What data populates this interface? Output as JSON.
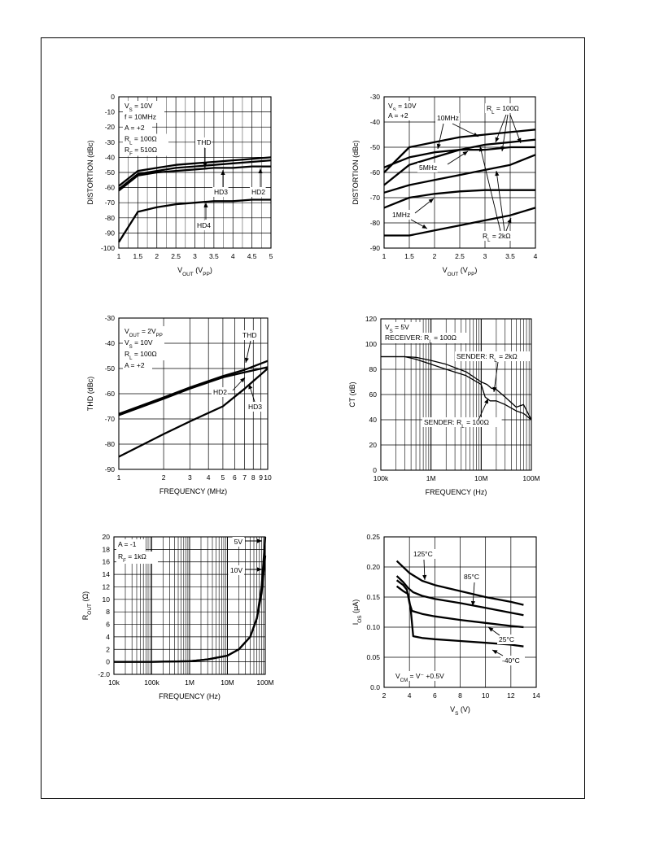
{
  "page": {
    "frame_color": "#000000"
  },
  "chart_data": [
    {
      "id": "distortion-vs-vout-10mhz",
      "type": "line",
      "xlabel": "V_OUT (V_PP)",
      "ylabel": "DISTORTION (dBc)",
      "xlim": [
        1,
        5
      ],
      "ylim": [
        -100,
        0
      ],
      "x_ticks": [
        1,
        1.5,
        2,
        2.5,
        3,
        3.5,
        4,
        4.5,
        5
      ],
      "x_tick_labels": [
        "1",
        "1.5",
        "2",
        "2.5",
        "3",
        "3.5",
        "4",
        "4.5",
        "5"
      ],
      "y_ticks": [
        0,
        -10,
        -20,
        -30,
        -40,
        -50,
        -60,
        -70,
        -80,
        -90,
        -100
      ],
      "y_tick_labels": [
        "0",
        "-10",
        "-20",
        "-30",
        "-40",
        "-50",
        "-60",
        "-70",
        "-80",
        "-90",
        "-100"
      ],
      "grid": true,
      "conditions": [
        "V_S = 10V",
        "f = 10MHz",
        "A = +2",
        "R_L = 100Ω",
        "R_F = 510Ω"
      ],
      "series": [
        {
          "name": "THD",
          "x": [
            1,
            1.5,
            2,
            2.5,
            3,
            3.5,
            4,
            4.5,
            5
          ],
          "y": [
            -59,
            -49,
            -47,
            -45,
            -44,
            -43,
            -42,
            -41,
            -40
          ]
        },
        {
          "name": "HD3",
          "x": [
            1,
            1.5,
            2,
            2.5,
            3,
            3.5,
            4,
            4.5,
            5
          ],
          "y": [
            -61,
            -51,
            -49,
            -47,
            -46,
            -45,
            -44,
            -43,
            -42
          ]
        },
        {
          "name": "HD2",
          "x": [
            1,
            1.5,
            2,
            2.5,
            3,
            3.5,
            4,
            4.5,
            5
          ],
          "y": [
            -62,
            -52,
            -50,
            -49,
            -48,
            -47,
            -47,
            -46,
            -46
          ]
        },
        {
          "name": "HD4",
          "x": [
            1,
            1.5,
            2,
            2.5,
            3,
            3.5,
            4,
            4.5,
            5
          ],
          "y": [
            -96,
            -76,
            -73,
            -71,
            -70,
            -69,
            -69,
            -68,
            -68
          ]
        }
      ],
      "annotations": [
        "THD",
        "HD3",
        "HD2",
        "HD4"
      ]
    },
    {
      "id": "distortion-vs-vout-load",
      "type": "line",
      "xlabel": "V_OUT (V_PP)",
      "ylabel": "DISTORTION (dBc)",
      "xlim": [
        1,
        4
      ],
      "ylim": [
        -90,
        -30
      ],
      "x_ticks": [
        1,
        1.5,
        2,
        2.5,
        3,
        3.5,
        4
      ],
      "x_tick_labels": [
        "1",
        "1.5",
        "2",
        "2.5",
        "3",
        "3.5",
        "4"
      ],
      "y_ticks": [
        -30,
        -40,
        -50,
        -60,
        -70,
        -80,
        -90
      ],
      "y_tick_labels": [
        "-30",
        "-40",
        "-50",
        "-60",
        "-70",
        "-80",
        "-90"
      ],
      "grid": true,
      "conditions": [
        "V_S = 10V",
        "A = +2"
      ],
      "series": [
        {
          "x": [
            1,
            1.5,
            2,
            2.5,
            3,
            3.5,
            4
          ],
          "y": [
            -60,
            -50,
            -48,
            -46,
            -45,
            -44,
            -43
          ]
        },
        {
          "x": [
            1,
            1.5,
            2,
            2.5,
            3,
            3.5,
            4
          ],
          "y": [
            -58,
            -54,
            -52,
            -51,
            -51,
            -50,
            -50
          ]
        },
        {
          "x": [
            1,
            1.5,
            2,
            2.5,
            3,
            3.5,
            4
          ],
          "y": [
            -65,
            -57,
            -54,
            -51,
            -49,
            -48,
            -47
          ]
        },
        {
          "x": [
            1,
            1.5,
            2,
            2.5,
            3,
            3.5,
            4
          ],
          "y": [
            -68,
            -65,
            -63,
            -61,
            -59,
            -57,
            -53
          ]
        },
        {
          "x": [
            1,
            1.5,
            2,
            2.5,
            3,
            3.5,
            4
          ],
          "y": [
            -74,
            -70,
            -68.5,
            -67.5,
            -67,
            -67,
            -67
          ]
        },
        {
          "x": [
            1,
            1.5,
            2,
            2.5,
            3,
            3.5,
            4
          ],
          "y": [
            -85,
            -85,
            -83,
            -81,
            -79,
            -77,
            -74
          ]
        }
      ],
      "annotations": [
        "10MHz",
        "5MHz",
        "1MHz",
        "R_L = 100Ω",
        "R_L = 2kΩ"
      ]
    },
    {
      "id": "thd-vs-frequency",
      "type": "line",
      "xscale": "log",
      "xlabel": "FREQUENCY (MHz)",
      "ylabel": "THD (dBc)",
      "xlim": [
        1,
        10
      ],
      "ylim": [
        -90,
        -30
      ],
      "x_ticks": [
        1,
        2,
        3,
        4,
        5,
        6,
        7,
        8,
        9,
        10
      ],
      "x_tick_labels": [
        "1",
        "2",
        "3",
        "4",
        "5",
        "6",
        "7",
        "8",
        "9",
        "10"
      ],
      "y_ticks": [
        -30,
        -40,
        -50,
        -60,
        -70,
        -80,
        -90
      ],
      "y_tick_labels": [
        "-30",
        "-40",
        "-50",
        "-60",
        "-70",
        "-80",
        "-90"
      ],
      "grid": true,
      "conditions": [
        "V_OUT = 2V_PP",
        "V_S = 10V",
        "R_L = 100Ω",
        "A = +2"
      ],
      "series": [
        {
          "name": "THD",
          "x": [
            1,
            2,
            3,
            5,
            7,
            10
          ],
          "y": [
            -68,
            -61.5,
            -57.5,
            -53,
            -50.5,
            -47
          ]
        },
        {
          "name": "HD2",
          "x": [
            1,
            2,
            3,
            5,
            7,
            10
          ],
          "y": [
            -68.5,
            -62,
            -58,
            -53.5,
            -51.5,
            -49.5
          ]
        },
        {
          "name": "HD3",
          "x": [
            1,
            2,
            3,
            5,
            7,
            10
          ],
          "y": [
            -85,
            -76,
            -71,
            -65,
            -58,
            -50
          ]
        }
      ],
      "annotations": [
        "THD",
        "HD2",
        "HD3"
      ]
    },
    {
      "id": "crosstalk-vs-frequency",
      "type": "line",
      "xscale": "log",
      "xlabel": "FREQUENCY (Hz)",
      "ylabel": "CT (dB)",
      "xlim": [
        100000,
        100000000
      ],
      "ylim": [
        0,
        120
      ],
      "x_ticks": [
        100000,
        1000000,
        10000000,
        100000000
      ],
      "x_tick_labels": [
        "100k",
        "1M",
        "10M",
        "100M"
      ],
      "y_ticks": [
        0,
        20,
        40,
        60,
        80,
        100,
        120
      ],
      "y_tick_labels": [
        "0",
        "20",
        "40",
        "60",
        "80",
        "100",
        "120"
      ],
      "grid": true,
      "conditions": [
        "V_S = 5V",
        "RECEIVER: R_L = 100Ω"
      ],
      "series": [
        {
          "name": "SENDER: R_L = 2kΩ",
          "x": [
            100000,
            300000,
            500000,
            1000000,
            2000000,
            5000000,
            10000000,
            13000000,
            16000000,
            20000000,
            30000000,
            50000000,
            70000000,
            100000000
          ],
          "y": [
            90,
            90,
            89.5,
            87,
            84,
            78,
            70,
            68,
            65,
            64,
            58,
            50,
            52,
            40
          ]
        },
        {
          "name": "SENDER: R_L = 100Ω",
          "x": [
            100000,
            300000,
            500000,
            1000000,
            2000000,
            5000000,
            10000000,
            12000000,
            15000000,
            20000000,
            30000000,
            50000000,
            70000000,
            100000000
          ],
          "y": [
            90,
            90,
            88,
            84,
            80,
            75,
            68,
            58,
            55,
            55,
            52,
            47,
            45,
            40
          ]
        }
      ],
      "annotations": [
        "SENDER: R_L = 2kΩ",
        "SENDER: R_L = 100Ω"
      ]
    },
    {
      "id": "rout-vs-frequency",
      "type": "line",
      "xscale": "log",
      "xlabel": "FREQUENCY (Hz)",
      "ylabel": "R_OUT (Ω)",
      "xlim": [
        10000,
        100000000
      ],
      "ylim": [
        -2,
        20
      ],
      "x_ticks": [
        10000,
        100000,
        1000000,
        10000000,
        100000000
      ],
      "x_tick_labels": [
        "10k",
        "100k",
        "1M",
        "10M",
        "100M"
      ],
      "y_ticks": [
        20,
        18,
        16,
        14,
        12,
        10,
        8,
        6,
        4,
        2,
        0,
        -2
      ],
      "y_tick_labels": [
        "20",
        "18",
        "16",
        "14",
        "12",
        "10",
        "8",
        "6",
        "4",
        "2",
        "0",
        "-2.0"
      ],
      "grid": true,
      "conditions": [
        "A = -1",
        "R_F = 1kΩ"
      ],
      "series": [
        {
          "name": "5V",
          "x": [
            10000,
            100000,
            1000000,
            3000000,
            10000000,
            20000000,
            40000000,
            60000000,
            80000000,
            100000000
          ],
          "y": [
            0,
            0,
            0.1,
            0.4,
            1,
            2,
            4,
            7,
            12,
            20
          ]
        },
        {
          "name": "10V",
          "x": [
            10000,
            100000,
            1000000,
            3000000,
            10000000,
            20000000,
            40000000,
            60000000,
            80000000,
            100000000
          ],
          "y": [
            0,
            0,
            0.1,
            0.4,
            1,
            2,
            4,
            7,
            11,
            17
          ]
        }
      ],
      "annotations": [
        "5V",
        "10V"
      ]
    },
    {
      "id": "ios-vs-vs",
      "type": "line",
      "xlabel": "V_S (V)",
      "ylabel": "I_OS (μA)",
      "xlim": [
        2,
        14
      ],
      "ylim": [
        0,
        0.25
      ],
      "x_ticks": [
        2,
        4,
        6,
        8,
        10,
        12,
        14
      ],
      "x_tick_labels": [
        "2",
        "4",
        "6",
        "8",
        "10",
        "12",
        "14"
      ],
      "y_ticks": [
        0.25,
        0.2,
        0.15,
        0.1,
        0.05,
        0
      ],
      "y_tick_labels": [
        "0.25",
        "0.20",
        "0.15",
        "0.10",
        "0.05",
        "0.0"
      ],
      "grid": true,
      "conditions": [
        "V_CM = V⁻ +0.5V"
      ],
      "series": [
        {
          "name": "125°C",
          "x": [
            3,
            4,
            5,
            6,
            8,
            10,
            12,
            13
          ],
          "y": [
            0.21,
            0.19,
            0.177,
            0.17,
            0.16,
            0.15,
            0.142,
            0.137
          ]
        },
        {
          "name": "85°C",
          "x": [
            3,
            3.5,
            3.9,
            4.3,
            5,
            6,
            8,
            10,
            12,
            13
          ],
          "y": [
            0.185,
            0.175,
            0.165,
            0.158,
            0.152,
            0.147,
            0.14,
            0.132,
            0.124,
            0.12
          ]
        },
        {
          "name": "25°C",
          "x": [
            3,
            3.5,
            3.8,
            4,
            4.2,
            5,
            6,
            8,
            10,
            12,
            13
          ],
          "y": [
            0.178,
            0.17,
            0.162,
            0.14,
            0.127,
            0.122,
            0.118,
            0.112,
            0.107,
            0.102,
            0.1
          ]
        },
        {
          "name": "-40°C",
          "x": [
            3,
            3.5,
            3.9,
            4.1,
            4.3,
            5,
            6,
            8,
            10,
            12,
            13
          ],
          "y": [
            0.168,
            0.16,
            0.155,
            0.13,
            0.085,
            0.082,
            0.08,
            0.077,
            0.074,
            0.071,
            0.068
          ]
        }
      ],
      "annotations": [
        "125°C",
        "85°C",
        "25°C",
        "-40°C"
      ]
    }
  ]
}
